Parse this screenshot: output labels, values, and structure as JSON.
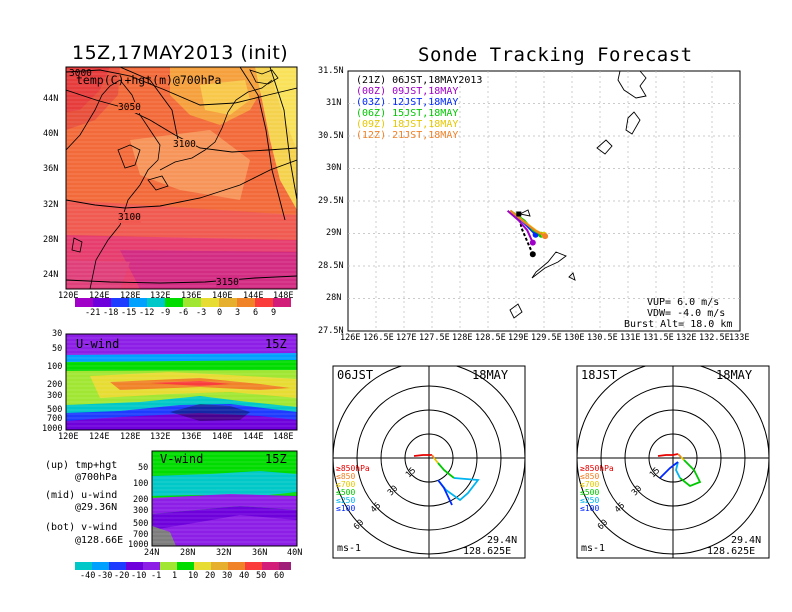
{
  "titles": {
    "left": "15Z,17MAY2013 (init)",
    "right": "Sonde Tracking Forecast"
  },
  "map_panel": {
    "label": "temp(C)+hgt(m)@700hPa",
    "contour_labels": [
      "3000",
      "3050",
      "3100",
      "3100",
      "3150"
    ],
    "lat_ticks": [
      "44N",
      "40N",
      "36N",
      "32N",
      "28N",
      "24N"
    ],
    "lon_ticks": [
      "120E",
      "124E",
      "128E",
      "132E",
      "136E",
      "140E",
      "144E",
      "148E"
    ],
    "colorbar_labels": [
      "-21",
      "-18",
      "-15",
      "-12",
      "-9",
      "-6",
      "-3",
      "0",
      "3",
      "6",
      "9"
    ]
  },
  "uwind_panel": {
    "label": "U-wind",
    "time": "15Z",
    "p_ticks": [
      "30",
      "50",
      "100",
      "200",
      "300",
      "500",
      "700",
      "1000"
    ],
    "lon_ticks": [
      "120E",
      "124E",
      "128E",
      "132E",
      "136E",
      "140E",
      "144E",
      "148E"
    ]
  },
  "vwind_panel": {
    "label": "V-wind",
    "time": "15Z",
    "p_ticks": [
      "50",
      "100",
      "200",
      "300",
      "500",
      "700",
      "1000"
    ],
    "lat_ticks": [
      "24N",
      "28N",
      "32N",
      "36N",
      "40N"
    ],
    "colorbar_labels": [
      "-40",
      "-30",
      "-20",
      "-10",
      "-1",
      "1",
      "10",
      "20",
      "30",
      "40",
      "50",
      "60"
    ]
  },
  "notes": [
    {
      "line1": "(up) tmp+hgt",
      "line2": "@700hPa"
    },
    {
      "line1": "(mid) u-wind",
      "line2": "@29.36N"
    },
    {
      "line1": "(bot) v-wind",
      "line2": "@128.66E"
    }
  ],
  "track_map": {
    "lat_ticks": [
      "31.5N",
      "31N",
      "30.5N",
      "30N",
      "29.5N",
      "29N",
      "28.5N",
      "28N",
      "27.5N"
    ],
    "lon_ticks": [
      "126E",
      "126.5E",
      "127E",
      "127.5E",
      "128E",
      "128.5E",
      "129E",
      "129.5E",
      "130E",
      "130.5E",
      "131E",
      "131.5E",
      "132E",
      "132.5E",
      "133E"
    ],
    "legend": [
      {
        "code": "(21Z)",
        "text": "06JST,18MAY2013",
        "color": "#000000"
      },
      {
        "code": "(00Z)",
        "text": "09JST,18MAY",
        "color": "#a000c8"
      },
      {
        "code": "(03Z)",
        "text": "12JST,18MAY",
        "color": "#0028ff"
      },
      {
        "code": "(06Z)",
        "text": "15JST,18MAY",
        "color": "#00c800"
      },
      {
        "code": "(09Z)",
        "text": "18JST,18MAY",
        "color": "#e6c800"
      },
      {
        "code": "(12Z)",
        "text": "21JST,18MAY",
        "color": "#f08228"
      }
    ],
    "params": [
      "VUP= 6.0 m/s",
      "VDW= -4.0 m/s",
      "Burst Alt= 18.0 km"
    ]
  },
  "hodographs": [
    {
      "time": "06JST",
      "date": "18MAY",
      "ring_labels": [
        "15",
        "30",
        "45",
        "60"
      ],
      "units": "ms-1",
      "lat": "29.4N",
      "lon": "128.625E",
      "levels": [
        {
          "label": "≥850hPa",
          "color": "#e60000"
        },
        {
          "label": "≤850",
          "color": "#f08228"
        },
        {
          "label": "≤700",
          "color": "#e6c800"
        },
        {
          "label": "≤500",
          "color": "#00c800"
        },
        {
          "label": "≤250",
          "color": "#00b4f0"
        },
        {
          "label": "≤100",
          "color": "#0028ff"
        }
      ]
    },
    {
      "time": "18JST",
      "date": "18MAY",
      "ring_labels": [
        "15",
        "30",
        "45",
        "60"
      ],
      "units": "ms-1",
      "lat": "29.4N",
      "lon": "128.625E",
      "levels": [
        {
          "label": "≥850hPa",
          "color": "#e60000"
        },
        {
          "label": "≤850",
          "color": "#f08228"
        },
        {
          "label": "≤700",
          "color": "#e6c800"
        },
        {
          "label": "≤500",
          "color": "#00c800"
        },
        {
          "label": "≤250",
          "color": "#00b4f0"
        },
        {
          "label": "≤100",
          "color": "#0028ff"
        }
      ]
    }
  ],
  "chart_data": [
    {
      "type": "heatmap",
      "title": "15Z,17MAY2013 (init)",
      "field": "temp(C)+hgt(m)@700hPa",
      "colorbar": [
        -21,
        -18,
        -15,
        -12,
        -9,
        -6,
        -3,
        0,
        3,
        6,
        9
      ],
      "xlim": [
        "120E",
        "150E"
      ],
      "ylim": [
        "22N",
        "48N"
      ]
    },
    {
      "type": "heatmap",
      "field": "U-wind",
      "xlim": [
        "120E",
        "150E"
      ],
      "ylim": [
        1000,
        30
      ]
    },
    {
      "type": "heatmap",
      "field": "V-wind",
      "colorbar": [
        -40,
        -30,
        -20,
        -10,
        -1,
        1,
        10,
        20,
        30,
        40,
        50,
        60
      ],
      "xlim": [
        "24N",
        "40N"
      ],
      "ylim": [
        1000,
        50
      ]
    },
    {
      "type": "line",
      "title": "Sonde Tracking Forecast",
      "xlim": [
        126,
        133
      ],
      "ylim": [
        27.5,
        31.5
      ],
      "series": [
        {
          "name": "(21Z) 06JST,18MAY2013",
          "x": [
            129.05,
            129.1,
            129.2,
            129.3
          ],
          "y": [
            29.3,
            29.08,
            28.88,
            28.68
          ]
        },
        {
          "name": "(00Z) 09JST,18MAY",
          "x": [
            128.85,
            129.05,
            129.2,
            129.3
          ],
          "y": [
            29.35,
            29.2,
            29.05,
            28.86
          ]
        },
        {
          "name": "(03Z) 12JST,18MAY",
          "x": [
            128.9,
            129.1,
            129.25,
            129.35
          ],
          "y": [
            29.35,
            29.2,
            29.07,
            28.98
          ]
        },
        {
          "name": "(06Z) 15JST,18MAY",
          "x": [
            128.9,
            129.15,
            129.3,
            129.45
          ],
          "y": [
            29.35,
            29.2,
            29.05,
            28.98
          ]
        },
        {
          "name": "(09Z) 18JST,18MAY",
          "x": [
            128.9,
            129.15,
            129.35,
            129.5
          ],
          "y": [
            29.35,
            29.18,
            29.05,
            28.98
          ]
        },
        {
          "name": "(12Z) 21JST,18MAY",
          "x": [
            128.9,
            129.15,
            129.35,
            129.52
          ],
          "y": [
            29.35,
            29.17,
            29.04,
            28.96
          ]
        }
      ]
    }
  ]
}
